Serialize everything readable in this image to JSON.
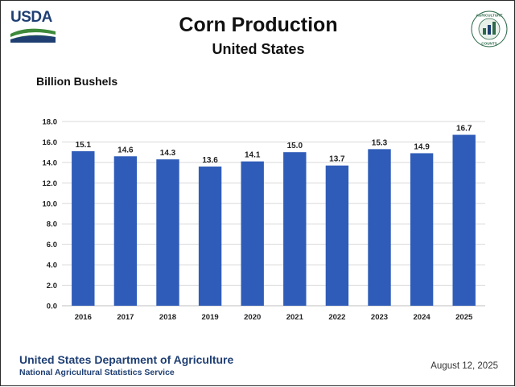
{
  "header": {
    "agency_logo_text": "USDA",
    "title": "Corn Production",
    "subtitle": "United States",
    "seal_text": "AGRICULTURE COUNTS"
  },
  "chart_data": {
    "type": "bar",
    "title": "Corn Production",
    "subtitle": "United States",
    "ylabel": "Billion Bushels",
    "xlabel": "",
    "categories": [
      "2016",
      "2017",
      "2018",
      "2019",
      "2020",
      "2021",
      "2022",
      "2023",
      "2024",
      "2025"
    ],
    "values": [
      15.1,
      14.6,
      14.3,
      13.6,
      14.1,
      15.0,
      13.7,
      15.3,
      14.9,
      16.7
    ],
    "value_labels": [
      "15.1",
      "14.6",
      "14.3",
      "13.6",
      "14.1",
      "15.0",
      "13.7",
      "15.3",
      "14.9",
      "16.7"
    ],
    "ylim": [
      0,
      18
    ],
    "yticks": [
      "0.0",
      "2.0",
      "4.0",
      "6.0",
      "8.0",
      "10.0",
      "12.0",
      "14.0",
      "16.0",
      "18.0"
    ],
    "grid": true,
    "legend": "none",
    "bar_color": "#2f5cb8"
  },
  "footer": {
    "org": "United States Department of Agriculture",
    "service": "National Agricultural Statistics Service",
    "date": "August 12, 2025"
  },
  "colors": {
    "agency_blue": "#1f3f73",
    "bar": "#2f5cb8",
    "grid": "#d9d9d9",
    "swoosh_green": "#3d8a3a"
  }
}
